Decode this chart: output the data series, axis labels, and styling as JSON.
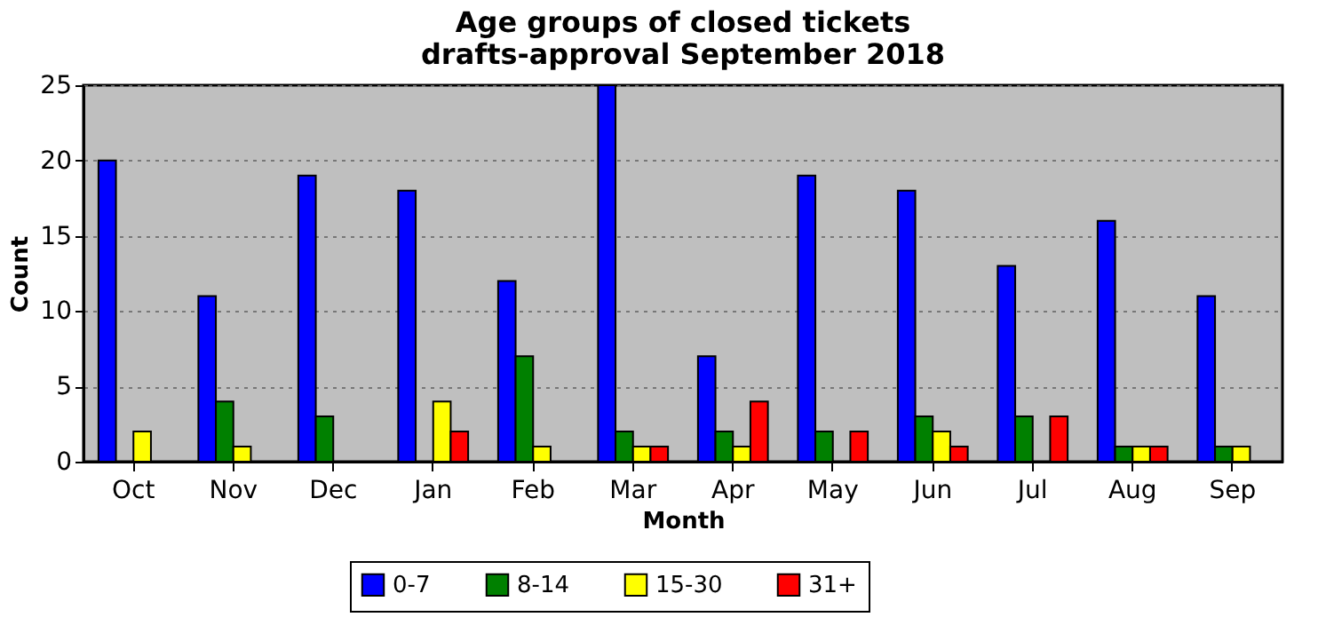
{
  "chart_data": {
    "type": "bar",
    "title": "Age groups of closed tickets\ndrafts-approval September 2018",
    "xlabel": "Month",
    "ylabel": "Count",
    "categories": [
      "Oct",
      "Nov",
      "Dec",
      "Jan",
      "Feb",
      "Mar",
      "Apr",
      "May",
      "Jun",
      "Jul",
      "Aug",
      "Sep"
    ],
    "series": [
      {
        "name": "0-7",
        "color": "#0000ff",
        "values": [
          20,
          11,
          19,
          18,
          12,
          25,
          7,
          19,
          18,
          13,
          16,
          11
        ]
      },
      {
        "name": "8-14",
        "color": "#008000",
        "values": [
          0,
          4,
          3,
          0,
          7,
          2,
          2,
          2,
          3,
          3,
          1,
          1
        ]
      },
      {
        "name": "15-30",
        "color": "#ffff00",
        "values": [
          2,
          1,
          0,
          4,
          1,
          1,
          1,
          0,
          2,
          0,
          1,
          1
        ]
      },
      {
        "name": "31+",
        "color": "#ff0000",
        "values": [
          0,
          0,
          0,
          2,
          0,
          1,
          4,
          2,
          1,
          3,
          1,
          0
        ]
      }
    ],
    "ylim": [
      0,
      25
    ],
    "yticks": [
      0,
      5,
      10,
      15,
      20,
      25
    ],
    "grid": "y",
    "legend": "bottom"
  }
}
